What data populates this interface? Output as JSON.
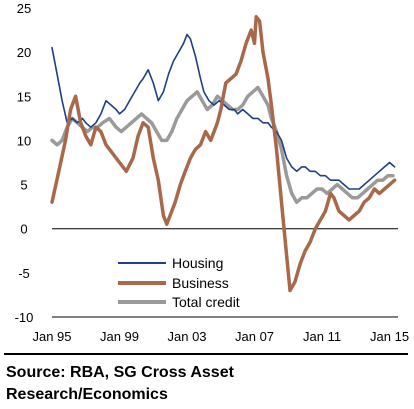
{
  "chart_data": {
    "type": "line",
    "title": "",
    "xlabel": "",
    "ylabel": "",
    "ylim": [
      -10,
      25
    ],
    "xlim": [
      1995.0,
      2015.5
    ],
    "yticks": [
      -10,
      -5,
      0,
      5,
      10,
      15,
      20,
      25
    ],
    "xtick_labels": [
      "Jan 95",
      "Jan 99",
      "Jan 03",
      "Jan 07",
      "Jan 11",
      "Jan 15"
    ],
    "xtick_values": [
      1995,
      1999,
      2003,
      2007,
      2011,
      2015
    ],
    "grid": false,
    "legend_position": "lower-center",
    "series": [
      {
        "name": "Housing",
        "color": "#1f3f86",
        "x": [
          1995.0,
          1995.3,
          1995.6,
          1995.9,
          1996.2,
          1996.5,
          1996.8,
          1997.0,
          1997.3,
          1997.6,
          1997.9,
          1998.2,
          1998.5,
          1998.8,
          1999.0,
          1999.3,
          1999.6,
          1999.9,
          2000.2,
          2000.4,
          2000.7,
          2001.0,
          2001.3,
          2001.6,
          2001.9,
          2002.2,
          2002.5,
          2002.8,
          2003.0,
          2003.2,
          2003.5,
          2003.8,
          2004.0,
          2004.3,
          2004.6,
          2004.9,
          2005.2,
          2005.5,
          2005.8,
          2006.0,
          2006.3,
          2006.6,
          2006.9,
          2007.2,
          2007.5,
          2007.8,
          2008.0,
          2008.3,
          2008.6,
          2008.9,
          2009.2,
          2009.5,
          2009.8,
          2010.0,
          2010.3,
          2010.6,
          2010.9,
          2011.2,
          2011.5,
          2011.8,
          2012.0,
          2012.3,
          2012.6,
          2012.9,
          2013.2,
          2013.5,
          2013.8,
          2014.1,
          2014.4,
          2014.7,
          2015.0,
          2015.3
        ],
        "values": [
          20.5,
          17.5,
          14.5,
          12.0,
          12.5,
          12.0,
          12.5,
          12.0,
          11.5,
          12.0,
          13.0,
          14.5,
          14.0,
          13.5,
          13.0,
          13.5,
          14.5,
          15.5,
          16.5,
          17.0,
          18.0,
          16.5,
          14.5,
          15.5,
          17.5,
          19.0,
          20.0,
          21.0,
          22.0,
          21.5,
          19.5,
          17.0,
          15.5,
          14.5,
          14.0,
          14.5,
          14.0,
          13.5,
          13.5,
          13.0,
          13.5,
          13.0,
          12.5,
          12.5,
          12.0,
          12.0,
          11.5,
          11.0,
          10.0,
          8.0,
          7.0,
          6.5,
          7.0,
          7.0,
          6.5,
          6.5,
          6.0,
          6.0,
          5.5,
          5.5,
          5.5,
          5.0,
          4.5,
          4.5,
          4.5,
          5.0,
          5.5,
          6.0,
          6.5,
          7.0,
          7.5,
          7.0
        ]
      },
      {
        "name": "Business",
        "color": "#a9684a",
        "x": [
          1995.0,
          1995.4,
          1995.8,
          1996.1,
          1996.4,
          1996.7,
          1997.0,
          1997.3,
          1997.6,
          1997.9,
          1998.2,
          1998.6,
          1999.0,
          1999.4,
          1999.8,
          2000.1,
          2000.4,
          2000.7,
          2001.0,
          2001.3,
          2001.6,
          2001.8,
          2002.0,
          2002.3,
          2002.6,
          2002.9,
          2003.2,
          2003.5,
          2003.8,
          2004.1,
          2004.4,
          2004.8,
          2005.0,
          2005.3,
          2005.6,
          2005.9,
          2006.2,
          2006.5,
          2006.8,
          2007.0,
          2007.1,
          2007.3,
          2007.5,
          2007.8,
          2008.0,
          2008.3,
          2008.6,
          2008.9,
          2009.1,
          2009.4,
          2009.7,
          2010.0,
          2010.3,
          2010.6,
          2010.9,
          2011.2,
          2011.5,
          2011.7,
          2012.0,
          2012.3,
          2012.6,
          2012.9,
          2013.2,
          2013.5,
          2013.8,
          2014.1,
          2014.4,
          2014.7,
          2015.0,
          2015.3
        ],
        "values": [
          3.0,
          6.5,
          10.0,
          13.5,
          15.0,
          12.0,
          10.5,
          9.5,
          11.5,
          11.0,
          9.5,
          8.5,
          7.5,
          6.5,
          8.0,
          10.5,
          12.0,
          11.5,
          8.0,
          5.5,
          1.5,
          0.5,
          1.5,
          3.0,
          5.0,
          6.5,
          8.0,
          9.0,
          9.5,
          11.0,
          10.0,
          12.0,
          13.5,
          16.5,
          17.0,
          17.5,
          19.0,
          21.0,
          22.5,
          21.0,
          24.0,
          23.5,
          20.0,
          17.0,
          14.0,
          9.0,
          3.0,
          -3.0,
          -7.0,
          -6.0,
          -4.0,
          -2.5,
          -1.5,
          0.0,
          1.0,
          2.0,
          4.0,
          3.5,
          2.0,
          1.5,
          1.0,
          1.5,
          2.0,
          3.0,
          3.5,
          4.5,
          4.0,
          4.5,
          5.0,
          5.5
        ]
      },
      {
        "name": "Total credit",
        "color": "#9a9a9a",
        "x": [
          1995.0,
          1995.3,
          1995.6,
          1995.9,
          1996.2,
          1996.5,
          1996.8,
          1997.1,
          1997.4,
          1997.7,
          1998.0,
          1998.4,
          1998.8,
          1999.1,
          1999.4,
          1999.7,
          2000.0,
          2000.3,
          2000.6,
          2000.9,
          2001.2,
          2001.5,
          2001.8,
          2002.1,
          2002.4,
          2002.7,
          2003.0,
          2003.3,
          2003.6,
          2003.9,
          2004.2,
          2004.5,
          2004.8,
          2005.1,
          2005.4,
          2005.7,
          2006.0,
          2006.3,
          2006.6,
          2006.9,
          2007.2,
          2007.5,
          2007.8,
          2008.0,
          2008.3,
          2008.6,
          2008.9,
          2009.2,
          2009.5,
          2009.8,
          2010.1,
          2010.4,
          2010.7,
          2011.0,
          2011.3,
          2011.6,
          2011.9,
          2012.2,
          2012.5,
          2012.8,
          2013.1,
          2013.4,
          2013.7,
          2014.0,
          2014.3,
          2014.6,
          2014.9,
          2015.2
        ],
        "values": [
          10.0,
          9.5,
          10.0,
          11.5,
          12.5,
          12.0,
          11.5,
          11.0,
          11.5,
          11.5,
          12.0,
          12.5,
          11.5,
          11.0,
          11.5,
          12.0,
          12.5,
          13.0,
          12.5,
          12.0,
          11.0,
          10.0,
          10.0,
          11.0,
          12.5,
          13.5,
          14.5,
          15.0,
          15.5,
          14.5,
          13.5,
          14.0,
          15.0,
          14.5,
          14.0,
          13.5,
          13.5,
          14.0,
          15.0,
          15.5,
          16.0,
          15.0,
          14.0,
          12.5,
          11.0,
          9.0,
          6.0,
          4.0,
          3.0,
          3.5,
          3.5,
          4.0,
          4.5,
          4.5,
          4.0,
          4.5,
          5.0,
          4.5,
          4.0,
          3.5,
          3.5,
          4.0,
          4.5,
          5.0,
          5.5,
          5.5,
          6.0,
          6.0
        ]
      }
    ]
  },
  "footer": {
    "source_line1": "Source: RBA, SG Cross Asset",
    "source_line2": "Research/Economics"
  }
}
